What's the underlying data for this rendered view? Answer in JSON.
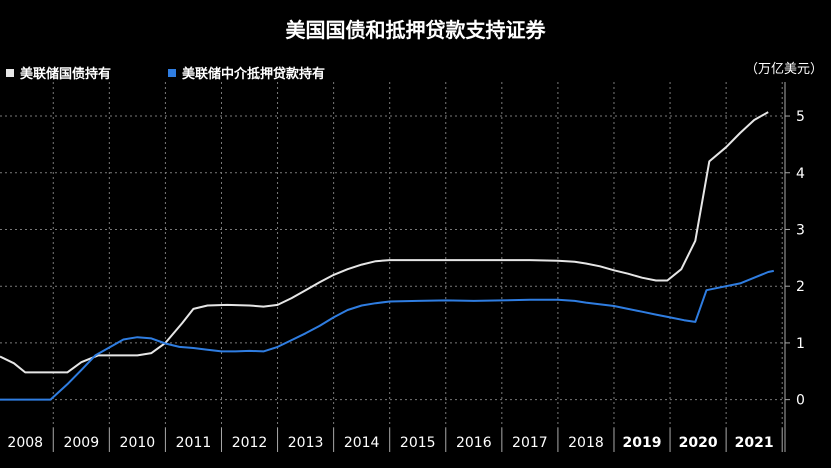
{
  "header": {
    "title": "美国国债和抵押贷款支持证券"
  },
  "chart_data": {
    "type": "line",
    "title": "美国国债和抵押贷款支持证券",
    "unit": "（万亿美元）",
    "legend_placement": "top-left",
    "ylim": [
      -0.5,
      5.6
    ],
    "y_ticks": [
      0,
      1,
      2,
      3,
      4,
      5
    ],
    "xlim": [
      2007.55,
      2021.55
    ],
    "x_tick_labels": [
      "2008",
      "2009",
      "2010",
      "2011",
      "2012",
      "2013",
      "2014",
      "2015",
      "2016",
      "2017",
      "2018",
      "2019",
      "2020",
      "2021"
    ],
    "grid": true,
    "colors": {
      "treasury": "#e6e6e6",
      "mbs": "#2f7de1"
    },
    "series": [
      {
        "name": "美联储国债持有",
        "color": "#e6e6e6",
        "points": [
          [
            2007.55,
            0.76
          ],
          [
            2007.8,
            0.64
          ],
          [
            2008.0,
            0.48
          ],
          [
            2008.75,
            0.48
          ],
          [
            2009.0,
            0.66
          ],
          [
            2009.3,
            0.78
          ],
          [
            2009.75,
            0.78
          ],
          [
            2010.0,
            0.78
          ],
          [
            2010.25,
            0.82
          ],
          [
            2010.5,
            1.0
          ],
          [
            2010.8,
            1.35
          ],
          [
            2011.0,
            1.6
          ],
          [
            2011.25,
            1.66
          ],
          [
            2011.6,
            1.67
          ],
          [
            2012.0,
            1.66
          ],
          [
            2012.25,
            1.64
          ],
          [
            2012.5,
            1.67
          ],
          [
            2012.75,
            1.79
          ],
          [
            2013.0,
            1.93
          ],
          [
            2013.25,
            2.07
          ],
          [
            2013.5,
            2.2
          ],
          [
            2013.75,
            2.3
          ],
          [
            2014.0,
            2.38
          ],
          [
            2014.25,
            2.44
          ],
          [
            2014.5,
            2.46
          ],
          [
            2015.0,
            2.46
          ],
          [
            2016.0,
            2.46
          ],
          [
            2017.0,
            2.46
          ],
          [
            2017.5,
            2.45
          ],
          [
            2017.8,
            2.43
          ],
          [
            2018.0,
            2.4
          ],
          [
            2018.25,
            2.35
          ],
          [
            2018.5,
            2.28
          ],
          [
            2018.75,
            2.22
          ],
          [
            2019.0,
            2.15
          ],
          [
            2019.25,
            2.1
          ],
          [
            2019.45,
            2.1
          ],
          [
            2019.7,
            2.3
          ],
          [
            2019.95,
            2.8
          ],
          [
            2020.2,
            4.2
          ],
          [
            2020.5,
            4.45
          ],
          [
            2020.75,
            4.7
          ],
          [
            2021.0,
            4.93
          ],
          [
            2021.25,
            5.07
          ]
        ]
      },
      {
        "name": "美联储中介抵押贷款持有",
        "color": "#2f7de1",
        "points": [
          [
            2007.55,
            0.0
          ],
          [
            2008.0,
            0.0
          ],
          [
            2008.45,
            0.0
          ],
          [
            2008.75,
            0.27
          ],
          [
            2009.0,
            0.52
          ],
          [
            2009.25,
            0.78
          ],
          [
            2009.5,
            0.92
          ],
          [
            2009.75,
            1.06
          ],
          [
            2010.0,
            1.1
          ],
          [
            2010.25,
            1.08
          ],
          [
            2010.5,
            0.99
          ],
          [
            2010.75,
            0.93
          ],
          [
            2011.0,
            0.91
          ],
          [
            2011.25,
            0.88
          ],
          [
            2011.5,
            0.85
          ],
          [
            2011.75,
            0.85
          ],
          [
            2012.0,
            0.86
          ],
          [
            2012.25,
            0.85
          ],
          [
            2012.5,
            0.93
          ],
          [
            2012.75,
            1.05
          ],
          [
            2013.0,
            1.17
          ],
          [
            2013.25,
            1.3
          ],
          [
            2013.5,
            1.45
          ],
          [
            2013.75,
            1.58
          ],
          [
            2014.0,
            1.66
          ],
          [
            2014.25,
            1.7
          ],
          [
            2014.5,
            1.73
          ],
          [
            2015.0,
            1.74
          ],
          [
            2015.5,
            1.75
          ],
          [
            2016.0,
            1.74
          ],
          [
            2016.5,
            1.75
          ],
          [
            2017.0,
            1.76
          ],
          [
            2017.5,
            1.76
          ],
          [
            2017.8,
            1.74
          ],
          [
            2018.0,
            1.71
          ],
          [
            2018.5,
            1.65
          ],
          [
            2018.75,
            1.6
          ],
          [
            2019.0,
            1.55
          ],
          [
            2019.25,
            1.5
          ],
          [
            2019.5,
            1.45
          ],
          [
            2019.75,
            1.4
          ],
          [
            2019.95,
            1.37
          ],
          [
            2020.15,
            1.93
          ],
          [
            2020.4,
            1.98
          ],
          [
            2020.75,
            2.05
          ],
          [
            2021.0,
            2.15
          ],
          [
            2021.25,
            2.25
          ],
          [
            2021.35,
            2.27
          ]
        ]
      }
    ]
  }
}
